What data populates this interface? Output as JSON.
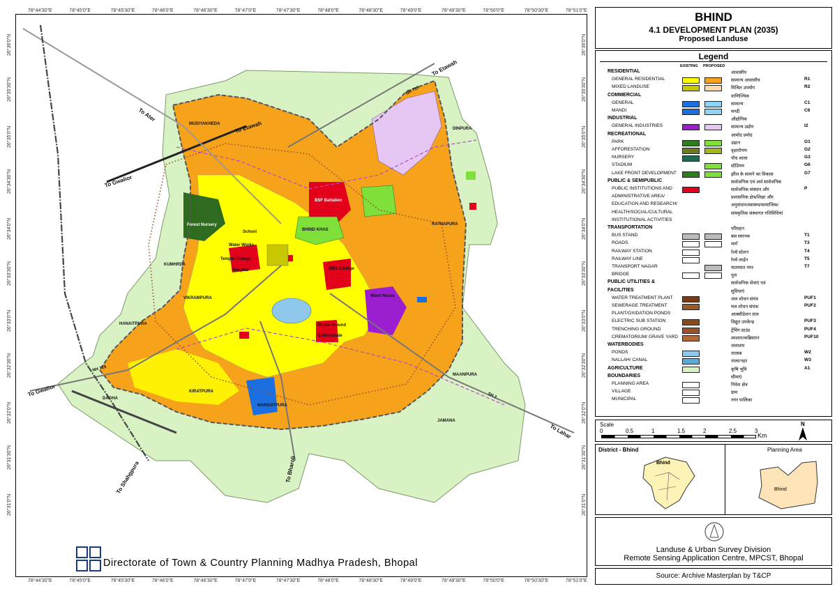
{
  "title": {
    "city": "BHIND",
    "plan": "4.1 DEVELOPMENT PLAN (2035)",
    "subtitle": "Proposed Landuse"
  },
  "graticule": {
    "top": [
      "78°44'30\"E",
      "78°45'0\"E",
      "78°45'30\"E",
      "78°46'0\"E",
      "78°46'30\"E",
      "78°47'0\"E",
      "78°47'30\"E",
      "78°48'0\"E",
      "78°48'30\"E",
      "78°49'0\"E",
      "78°49'30\"E",
      "78°50'0\"E",
      "78°50'30\"E",
      "78°51'0\"E"
    ],
    "bottom": [
      "78°44'30\"E",
      "78°45'0\"E",
      "78°45'30\"E",
      "78°46'0\"E",
      "78°46'30\"E",
      "78°47'0\"E",
      "78°47'30\"E",
      "78°48'0\"E",
      "78°48'30\"E",
      "78°49'0\"E",
      "78°49'30\"E",
      "78°50'0\"E",
      "78°50'30\"E",
      "78°51'0\"E"
    ],
    "side": [
      "26°36'0\"N",
      "26°35'30\"N",
      "26°35'0\"N",
      "26°34'30\"N",
      "26°34'0\"N",
      "26°33'30\"N",
      "26°33'0\"N",
      "26°32'30\"N",
      "26°32'0\"N",
      "26°31'30\"N",
      "26°31'0\"N"
    ]
  },
  "places": {
    "mudiyakheda": "MUDIYAKHEDA",
    "dinpura": "DINPURA",
    "ratnapura": "RATNAPURA",
    "kumhrda": "KUMHRDA",
    "vikrampura": "VIKRAMPURA",
    "hanaitpura": "HANAITPURA",
    "daoha": "DAOHA",
    "kiratpura": "KIRATPURA",
    "mangatpura": "MANGATPURA",
    "jamana": "JAMANA",
    "maanpura": "MAANPURA",
    "bhind_khas": "BHIND KHAS",
    "forest_nursery": "Forest Nursery",
    "school": "School",
    "water_works": "Water Works",
    "temple_college": "Temple College",
    "mbs_college": "MBS College",
    "hospital": "Hospital",
    "police_ground": "Police Ground",
    "collectorate": "Collectorate",
    "ward_house": "Ward House",
    "bsf": "BSF Battalion"
  },
  "roads": {
    "to_etawah_1": "To Etawah",
    "to_etawah_2": "To Etawah",
    "to_ater": "To Ater",
    "to_gwalior_1": "To Gwalior",
    "to_gwalior_2": "To Gwalior",
    "to_lahar": "To Lahar",
    "to_shahgpura": "To Shahgpura",
    "to_bharoli": "To Bharoli",
    "nh719_a": "NH 719",
    "nh719_b": "NH 719",
    "sh2": "SH 2"
  },
  "legend": {
    "heading": "Legend",
    "existing": "EXISTING",
    "proposed": "PROPOSED",
    "rows": [
      {
        "cat": "RESIDENTIAL",
        "hi": "आवासीय"
      },
      {
        "en": "GENERAL RESIDENTIAL",
        "hi": "सामान्य आवासीय",
        "code": "R1",
        "ex": "#ffff00",
        "pr": "#f7a21b"
      },
      {
        "en": "MIXED LANDUSE",
        "hi": "मिश्रित उपयोग",
        "code": "R2",
        "ex": "#c8c800",
        "pr": "#fdd9a6"
      },
      {
        "cat": "COMMERCIAL",
        "hi": "वाणिज्यिक"
      },
      {
        "en": "GENERAL",
        "hi": "सामान्य",
        "code": "C1",
        "ex": "#1c6fe0",
        "pr": "#8fd3f5"
      },
      {
        "en": "MANDI",
        "hi": "मण्डी",
        "code": "C6",
        "ex": "#1c6fe0",
        "pr": "#8fd3f5"
      },
      {
        "cat": "INDUSTRIAL",
        "hi": "औद्योगिक"
      },
      {
        "en": "GENERAL INDUSTRIES",
        "hi": "सामान्य उद्योग",
        "code": "I2",
        "ex": "#9b1fd0",
        "pr": "#e6c6f2"
      },
      {
        "cat": "RECREATIONAL",
        "hi": "आमोद प्रमोद"
      },
      {
        "en": "PARK",
        "hi": "उद्यान",
        "code": "G1",
        "ex": "#2e7d1e",
        "pr": "#7fe03a"
      },
      {
        "en": "AFFORESTATION",
        "hi": "वृक्षारोपण",
        "code": "G2",
        "ex": "#6b7d1e",
        "pr": "#a3b61e"
      },
      {
        "en": "NURSERY",
        "hi": "पौध शाला",
        "code": "G3",
        "ex": "#1e6b52",
        "pr": ""
      },
      {
        "en": "STADIUM",
        "hi": "स्टेडियम",
        "code": "G6",
        "ex": "",
        "pr": "#7fe03a"
      },
      {
        "en": "LAKE FRONT DEVELOPMENT",
        "hi": "झील के सामने का विकास",
        "code": "G7",
        "ex": "#2e7d1e",
        "pr": "#7fe03a"
      },
      {
        "cat": "PUBLIC & SEMIPUBLIC",
        "hi": "सार्वजनिक एवं अर्ध सार्वजनिक"
      },
      {
        "en": "PUBLIC INSTITUTIONS AND",
        "hi": "सार्वजनिक संस्थान और",
        "code": "P",
        "ex": "#e3001b",
        "pr": ""
      },
      {
        "en": "ADMINISTRATIVE AREA/",
        "hi": "प्रशासनिक क्षेत्र/शिक्षा और"
      },
      {
        "en": "EDUCATION AND RESEARCH/",
        "hi": "अनुसंधान/स्वास्थ्य/सामाजिक/"
      },
      {
        "en": "HEALTH/SOCIAL/CULTURAL",
        "hi": "सांस्कृतिक संस्थागत गतिविधियां"
      },
      {
        "en": "INSTITUTIONAL ACTIVITIES",
        "hi": ""
      },
      {
        "cat": "TRANSPORTATION",
        "hi": "परिवहन"
      },
      {
        "en": "BUS STAND",
        "hi": "बस स्थानक",
        "code": "T1",
        "ex": "#bbbbbb",
        "pr": "#bbbbbb"
      },
      {
        "en": "ROADS",
        "hi": "मार्ग",
        "code": "T3",
        "ex": "#ffffff",
        "pr": "#ffffff"
      },
      {
        "en": "RAILWAY STATION",
        "hi": "रेल्वे स्टेशन",
        "code": "T4",
        "ex": "#ffffff",
        "pr": ""
      },
      {
        "en": "RAILWAY LINE",
        "hi": "रेल्वे लाईन",
        "code": "T5",
        "ex": "#ffffff",
        "pr": ""
      },
      {
        "en": "TRANSPORT NAGAR",
        "hi": "यातायात नगर",
        "code": "T7",
        "ex": "",
        "pr": "#bbbbbb"
      },
      {
        "en": "BRIDGE",
        "hi": "पुल",
        "code": "",
        "ex": "#ffffff",
        "pr": "#ffffff"
      },
      {
        "cat": "PUBLIC UTILITIES &",
        "hi": "सार्वजनिक सेवाएं एवं"
      },
      {
        "cat": "FACILITIES",
        "hi": "सुविधाएं"
      },
      {
        "en": "WATER TREATMENT PLANT",
        "hi": "जल शोधन संयंत्र",
        "code": "PUF1",
        "ex": "#7a3b1a",
        "pr": ""
      },
      {
        "en": "SEWERAGE TREATMENT",
        "hi": "मल शोधन संयंत्र/",
        "code": "PUF2",
        "ex": "#9a5a2a",
        "pr": ""
      },
      {
        "en": "PLANT/OXIDATION PONDS",
        "hi": "आक्सीडेशन ताल"
      },
      {
        "en": "ELECTRIC SUB STATION",
        "hi": "विद्युत उपकेन्द्र",
        "code": "PUF3",
        "ex": "#8a4a1a",
        "pr": ""
      },
      {
        "en": "TRENCHING GROUND",
        "hi": "ट्रेंचिंग ग्राउंड",
        "code": "PUF4",
        "ex": "#a0502a",
        "pr": ""
      },
      {
        "en": "CREMATORIUM/ GRAVE YARD",
        "hi": "श्मशान/कब्रिस्तान",
        "code": "PUF10",
        "ex": "#b06a3a",
        "pr": ""
      },
      {
        "cat": "WATERBODIES",
        "hi": "जलाशय"
      },
      {
        "en": "PONDS",
        "hi": "तालाब",
        "code": "W2",
        "ex": "#8fc8ea",
        "pr": ""
      },
      {
        "en": "NALLAH/ CANAL",
        "hi": "नाला/नहर",
        "code": "W3",
        "ex": "#5aa8e0",
        "pr": ""
      },
      {
        "cat": "AGRICULTURE",
        "hi": "कृषि भूमि",
        "code": "A1",
        "ex": "#d9f2c4",
        "pr": ""
      },
      {
        "cat": "BOUNDARIES",
        "hi": "सीमाएं"
      },
      {
        "en": "PLANNING AREA",
        "hi": "निवेश क्षेत्र",
        "ex": "#ffffff",
        "pr": ""
      },
      {
        "en": "VILLAGE",
        "hi": "ग्राम",
        "ex": "#ffffff",
        "pr": ""
      },
      {
        "en": "MUNICIPAL",
        "hi": "नगर पालिका",
        "ex": "#ffffff",
        "pr": ""
      }
    ]
  },
  "scale": {
    "label": "Scale",
    "ticks": [
      "0",
      "0.5",
      "1",
      "1.5",
      "2",
      "2.5",
      "3"
    ],
    "unit": "Km",
    "north": "N"
  },
  "inset": {
    "district_label": "District - Bhind",
    "district_town": "Bhind",
    "planning_label": "Planning Area",
    "planning_town": "Bhind"
  },
  "credits": {
    "division": "Landuse & Urban Survey Division",
    "centre": "Remote Sensing Application Centre, MPCST, Bhopal",
    "source": "Source: Archive Masterplan by T&CP",
    "footer": "Directorate of Town & Country Planning Madhya Pradesh, Bhopal"
  },
  "colors": {
    "agriculture": "#d9f2c4",
    "residential_proposed": "#f7a21b",
    "residential_existing": "#ffff00",
    "public": "#e3001b",
    "commercial": "#1c6fe0",
    "industrial_proposed": "#e6c6f2",
    "park": "#7fe03a",
    "water": "#8fc8ea"
  }
}
